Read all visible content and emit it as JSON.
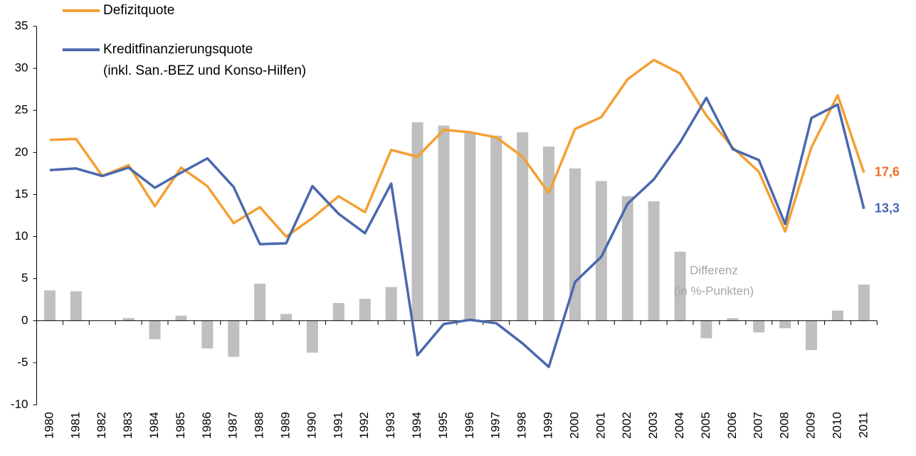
{
  "chart_data": {
    "type": "line",
    "categories": [
      "1980",
      "1981",
      "1982",
      "1983",
      "1984",
      "1985",
      "1986",
      "1987",
      "1988",
      "1989",
      "1990",
      "1991",
      "1992",
      "1993",
      "1994",
      "1995",
      "1996",
      "1997",
      "1998",
      "1999",
      "2000",
      "2001",
      "2002",
      "2003",
      "2004",
      "2005",
      "2006",
      "2007",
      "2008",
      "2009",
      "2010",
      "2011"
    ],
    "ylim": [
      -10,
      35
    ],
    "yticks": [
      -10,
      -5,
      0,
      5,
      10,
      15,
      20,
      25,
      30,
      35
    ],
    "bars": {
      "name": [
        "Differenz",
        "(in %-Punkten)"
      ],
      "color": "#bfbfbf",
      "values": [
        3.6,
        3.5,
        0,
        0.3,
        -2.2,
        0.6,
        -3.3,
        -4.3,
        4.4,
        0.8,
        -3.8,
        2.1,
        2.6,
        4.0,
        23.6,
        23.2,
        22.3,
        22.0,
        22.4,
        20.7,
        18.1,
        16.6,
        14.8,
        14.2,
        8.2,
        -2.1,
        0.3,
        -1.4,
        -0.9,
        -3.5,
        1.2,
        4.3
      ]
    },
    "series": [
      {
        "name": [
          "Defizitquote"
        ],
        "color": "#f4a033",
        "end_label": "17,6",
        "end_label_color": "#e8702a",
        "values": [
          21.5,
          21.6,
          17.2,
          18.5,
          13.6,
          18.2,
          16.0,
          11.6,
          13.5,
          10.0,
          12.2,
          14.8,
          12.9,
          20.3,
          19.5,
          22.7,
          22.4,
          21.8,
          19.5,
          15.2,
          22.8,
          24.2,
          28.7,
          31.0,
          29.4,
          24.4,
          20.6,
          17.7,
          10.6,
          20.6,
          26.8,
          17.6
        ]
      },
      {
        "name": [
          "Kreditfinanzierungsquote",
          "(inkl. San.-BEZ und Konso-Hilfen)"
        ],
        "color": "#4a68ad",
        "end_label": "13,3",
        "end_label_color": "#4a68ad",
        "values": [
          17.9,
          18.1,
          17.2,
          18.2,
          15.8,
          17.6,
          19.3,
          15.9,
          9.1,
          9.2,
          16.0,
          12.7,
          10.4,
          16.3,
          -4.1,
          -0.4,
          0.1,
          -0.3,
          -2.7,
          -5.5,
          4.6,
          7.6,
          13.9,
          16.8,
          21.2,
          26.5,
          20.4,
          19.1,
          11.5,
          24.1,
          25.7,
          13.3
        ]
      }
    ]
  }
}
